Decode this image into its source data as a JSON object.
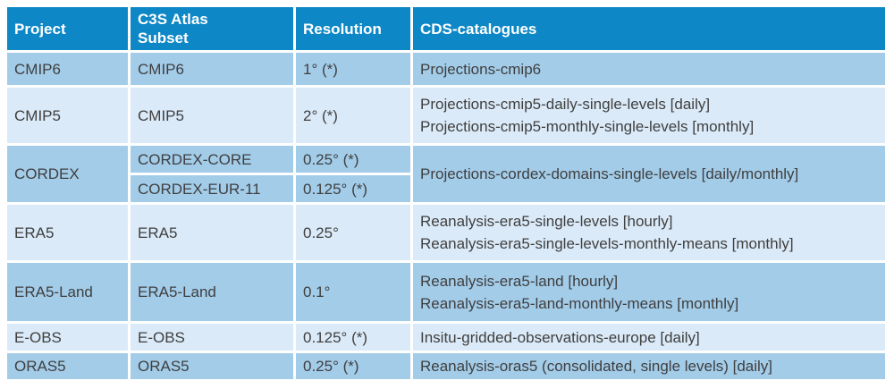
{
  "colors": {
    "header_bg": "#0d87c6",
    "row_medium": "#a3cce9",
    "row_light": "#dbeaf8",
    "header_text": "#ffffff",
    "body_text": "#3f3f3f",
    "grid": "#ffffff"
  },
  "table": {
    "columns": [
      {
        "label": "Project"
      },
      {
        "label": "C3S Atlas\nSubset"
      },
      {
        "label": "Resolution"
      },
      {
        "label": "CDS-catalogues"
      }
    ],
    "rows": [
      {
        "project": "CMIP6",
        "subsets": [
          {
            "subset": "CMIP6",
            "resolution": "1° (*)"
          }
        ],
        "catalogues": "Projections-cmip6"
      },
      {
        "project": "CMIP5",
        "subsets": [
          {
            "subset": "CMIP5",
            "resolution": "2° (*)"
          }
        ],
        "catalogues": "Projections-cmip5-daily-single-levels [daily]\nProjections-cmip5-monthly-single-levels [monthly]"
      },
      {
        "project": "CORDEX",
        "subsets": [
          {
            "subset": "CORDEX-CORE",
            "resolution": "0.25° (*)"
          },
          {
            "subset": "CORDEX-EUR-11",
            "resolution": "0.125° (*)"
          }
        ],
        "catalogues": "Projections-cordex-domains-single-levels [daily/monthly]"
      },
      {
        "project": "ERA5",
        "subsets": [
          {
            "subset": "ERA5",
            "resolution": "0.25°"
          }
        ],
        "catalogues": "Reanalysis-era5-single-levels [hourly]\nReanalysis-era5-single-levels-monthly-means [monthly]"
      },
      {
        "project": "ERA5-Land",
        "subsets": [
          {
            "subset": "ERA5-Land",
            "resolution": "0.1°"
          }
        ],
        "catalogues": "Reanalysis-era5-land [hourly]\nReanalysis-era5-land-monthly-means [monthly]"
      },
      {
        "project": "E-OBS",
        "subsets": [
          {
            "subset": "E-OBS",
            "resolution": "0.125° (*)"
          }
        ],
        "catalogues": "Insitu-gridded-observations-europe [daily]"
      },
      {
        "project": "ORAS5",
        "subsets": [
          {
            "subset": "ORAS5",
            "resolution": "0.25° (*)"
          }
        ],
        "catalogues": "Reanalysis-oras5 (consolidated, single levels) [daily]"
      }
    ]
  }
}
